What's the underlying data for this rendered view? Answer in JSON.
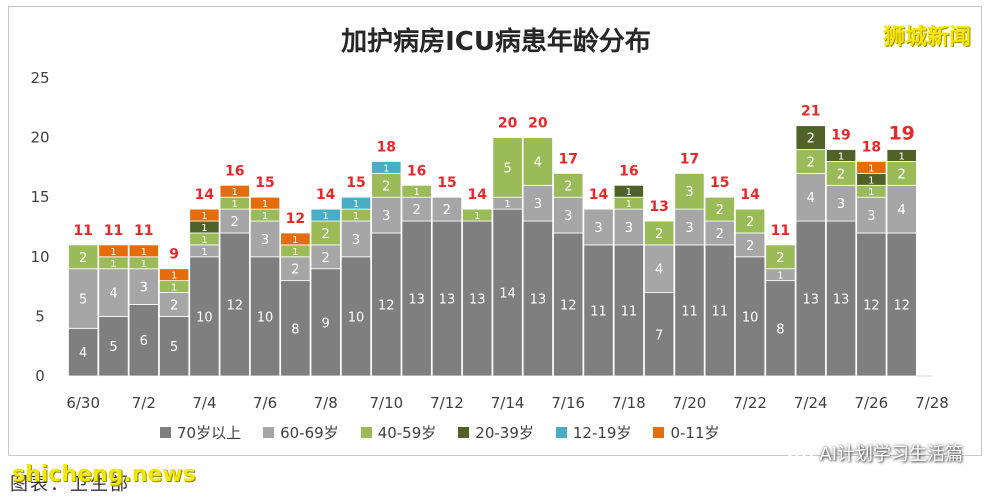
{
  "title": "加护病房ICU病患年龄分布",
  "watermark_top": "狮城新闻",
  "source_caption": "图表：卫生部",
  "site_watermark": "shicheng.news",
  "wechat_brand": "AI计划学习生活篇",
  "chart_data": {
    "type": "bar",
    "stacked": true,
    "title": "加护病房ICU病患年龄分布",
    "xlabel": "",
    "ylabel": "",
    "ylim": [
      0,
      25
    ],
    "yticks": [
      0,
      5,
      10,
      15,
      20,
      25
    ],
    "grid": false,
    "legend_position": "bottom",
    "categories": [
      "6/30",
      "7/1",
      "7/2",
      "7/3",
      "7/4",
      "7/5",
      "7/6",
      "7/7",
      "7/8",
      "7/9",
      "7/10",
      "7/11",
      "7/12",
      "7/13",
      "7/14",
      "7/15",
      "7/16",
      "7/17",
      "7/18",
      "7/19",
      "7/20",
      "7/21",
      "7/22",
      "7/23",
      "7/24",
      "7/25",
      "7/26",
      "7/27"
    ],
    "x_tick_labels": [
      "6/30",
      "7/2",
      "7/4",
      "7/6",
      "7/8",
      "7/10",
      "7/12",
      "7/14",
      "7/16",
      "7/18",
      "7/20",
      "7/22",
      "7/24",
      "7/26",
      "7/28"
    ],
    "series": [
      {
        "name": "70岁以上",
        "color": "#7f7f7f",
        "values": [
          4,
          5,
          6,
          5,
          10,
          12,
          10,
          8,
          9,
          10,
          12,
          13,
          13,
          13,
          14,
          13,
          12,
          11,
          11,
          7,
          11,
          11,
          10,
          8,
          13,
          13,
          12,
          12
        ]
      },
      {
        "name": "60-69岁",
        "color": "#a6a6a6",
        "values": [
          5,
          4,
          3,
          2,
          1,
          2,
          3,
          2,
          2,
          3,
          3,
          2,
          2,
          0,
          1,
          3,
          3,
          3,
          3,
          4,
          3,
          2,
          2,
          1,
          4,
          3,
          3,
          4
        ]
      },
      {
        "name": "40-59岁",
        "color": "#9bbb59",
        "values": [
          2,
          1,
          1,
          1,
          1,
          1,
          1,
          1,
          2,
          1,
          2,
          1,
          0,
          1,
          5,
          4,
          2,
          0,
          1,
          2,
          3,
          2,
          2,
          2,
          2,
          2,
          1,
          2
        ]
      },
      {
        "name": "20-39岁",
        "color": "#4f6228",
        "values": [
          0,
          0,
          0,
          0,
          1,
          0,
          0,
          0,
          0,
          0,
          0,
          0,
          0,
          0,
          0,
          0,
          0,
          0,
          1,
          0,
          0,
          0,
          0,
          0,
          2,
          1,
          1,
          1
        ]
      },
      {
        "name": "12-19岁",
        "color": "#4bacc6",
        "values": [
          0,
          0,
          0,
          0,
          0,
          0,
          0,
          0,
          1,
          1,
          1,
          0,
          0,
          0,
          0,
          0,
          0,
          0,
          0,
          0,
          0,
          0,
          0,
          0,
          0,
          0,
          0,
          0
        ]
      },
      {
        "name": "0-11岁",
        "color": "#e46c0a",
        "values": [
          0,
          1,
          1,
          1,
          1,
          1,
          1,
          1,
          0,
          0,
          0,
          0,
          0,
          0,
          0,
          0,
          0,
          0,
          0,
          0,
          0,
          0,
          0,
          0,
          0,
          0,
          1,
          0
        ]
      }
    ],
    "totals": [
      11,
      11,
      11,
      9,
      14,
      16,
      15,
      12,
      14,
      15,
      18,
      16,
      15,
      14,
      20,
      20,
      17,
      14,
      16,
      13,
      17,
      15,
      14,
      11,
      21,
      19,
      18,
      19
    ],
    "highlight_last_total": true
  }
}
